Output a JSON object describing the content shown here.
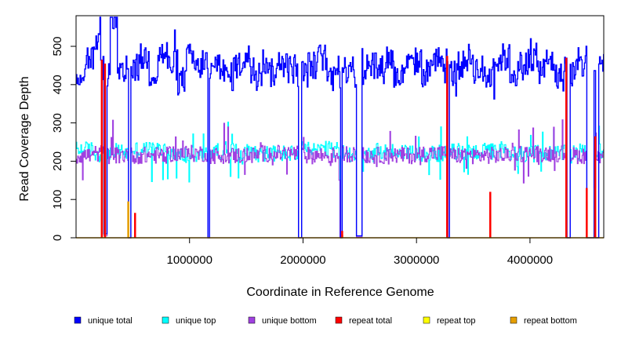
{
  "chart_data": {
    "type": "line",
    "title": "",
    "xlabel": "Coordinate in Reference Genome",
    "ylabel": "Read Coverage Depth",
    "xlim": [
      0,
      4650000
    ],
    "ylim": [
      0,
      580
    ],
    "x_ticks": [
      1000000,
      2000000,
      3000000,
      4000000
    ],
    "x_tick_labels": [
      "1000000",
      "2000000",
      "3000000",
      "4000000"
    ],
    "y_ticks": [
      0,
      100,
      200,
      300,
      400,
      500
    ],
    "y_tick_labels": [
      "0",
      "100",
      "200",
      "300",
      "400",
      "500"
    ],
    "legend_position": "bottom",
    "grid": false,
    "series": [
      {
        "name": "unique total",
        "color": "#0000ff",
        "typical_level": 440,
        "x": [
          0,
          80000,
          160000,
          220000,
          240000,
          270000,
          300000,
          360000,
          440000,
          460000,
          480000,
          560000,
          640000,
          720000,
          800000,
          880000,
          960000,
          1040000,
          1100000,
          1150000,
          1160000,
          1175000,
          1220000,
          1300000,
          1380000,
          1460000,
          1540000,
          1620000,
          1700000,
          1780000,
          1860000,
          1920000,
          1960000,
          1970000,
          1985000,
          2040000,
          2120000,
          2200000,
          2270000,
          2320000,
          2330000,
          2345000,
          2400000,
          2450000,
          2470000,
          2500000,
          2520000,
          2560000,
          2640000,
          2720000,
          2800000,
          2880000,
          2960000,
          3040000,
          3120000,
          3200000,
          3260000,
          3270000,
          3285000,
          3340000,
          3420000,
          3500000,
          3580000,
          3660000,
          3740000,
          3820000,
          3900000,
          3980000,
          4060000,
          4140000,
          4220000,
          4300000,
          4320000,
          4335000,
          4350000,
          4400000,
          4480000,
          4500000,
          4560000,
          4575000,
          4600000,
          4650000
        ],
        "y": [
          430,
          470,
          500,
          440,
          10,
          430,
          575,
          420,
          470,
          0,
          445,
          470,
          430,
          480,
          450,
          410,
          470,
          440,
          460,
          430,
          0,
          430,
          460,
          420,
          450,
          470,
          440,
          460,
          430,
          470,
          440,
          460,
          0,
          0,
          430,
          450,
          470,
          420,
          460,
          430,
          0,
          440,
          460,
          420,
          5,
          5,
          430,
          460,
          440,
          470,
          420,
          450,
          460,
          430,
          470,
          440,
          460,
          0,
          430,
          450,
          470,
          440,
          420,
          460,
          470,
          430,
          450,
          470,
          440,
          460,
          420,
          460,
          0,
          0,
          430,
          450,
          470,
          0,
          440,
          0,
          460,
          450
        ]
      },
      {
        "name": "unique top",
        "color": "#00ffff",
        "typical_level": 220,
        "x": [
          0,
          160000,
          240000,
          270000,
          440000,
          460000,
          480000,
          800000,
          1160000,
          1175000,
          1600000,
          1960000,
          1985000,
          2320000,
          2345000,
          2470000,
          2520000,
          3000000,
          3270000,
          3285000,
          3800000,
          4320000,
          4350000,
          4500000,
          4575000,
          4650000
        ],
        "y": [
          230,
          220,
          5,
          225,
          220,
          0,
          230,
          215,
          0,
          225,
          220,
          0,
          230,
          0,
          220,
          2,
          225,
          220,
          0,
          225,
          220,
          0,
          225,
          0,
          225,
          230
        ]
      },
      {
        "name": "unique bottom",
        "color": "#a040e0",
        "typical_level": 215,
        "x": [
          0,
          160000,
          240000,
          270000,
          440000,
          460000,
          480000,
          800000,
          1160000,
          1175000,
          1600000,
          1960000,
          1985000,
          2320000,
          2345000,
          2470000,
          2520000,
          3000000,
          3270000,
          3285000,
          3800000,
          4320000,
          4350000,
          4500000,
          4575000,
          4650000
        ],
        "y": [
          215,
          220,
          5,
          215,
          220,
          0,
          215,
          220,
          0,
          215,
          220,
          0,
          215,
          0,
          220,
          2,
          215,
          220,
          0,
          215,
          220,
          0,
          215,
          0,
          215,
          210
        ]
      },
      {
        "name": "repeat total",
        "color": "#ff0000",
        "x": [
          227000,
          255000,
          460000,
          520000,
          2345000,
          3270000,
          3650000,
          4320000,
          4500000,
          4575000
        ],
        "y": [
          465,
          455,
          0,
          65,
          18,
          475,
          120,
          470,
          130,
          265
        ]
      },
      {
        "name": "repeat top",
        "color": "#ffff00",
        "x": [
          227000,
          255000,
          460000,
          520000,
          2345000,
          3270000,
          3650000,
          4320000,
          4500000,
          4575000
        ],
        "y": [
          225,
          230,
          0,
          30,
          8,
          235,
          60,
          230,
          60,
          130
        ]
      },
      {
        "name": "repeat bottom",
        "color": "#e69f00",
        "x": [
          227000,
          255000,
          460000,
          520000,
          2345000,
          3270000,
          3650000,
          4320000,
          4500000,
          4575000
        ],
        "y": [
          235,
          225,
          95,
          35,
          8,
          240,
          62,
          240,
          95,
          75
        ]
      }
    ]
  }
}
